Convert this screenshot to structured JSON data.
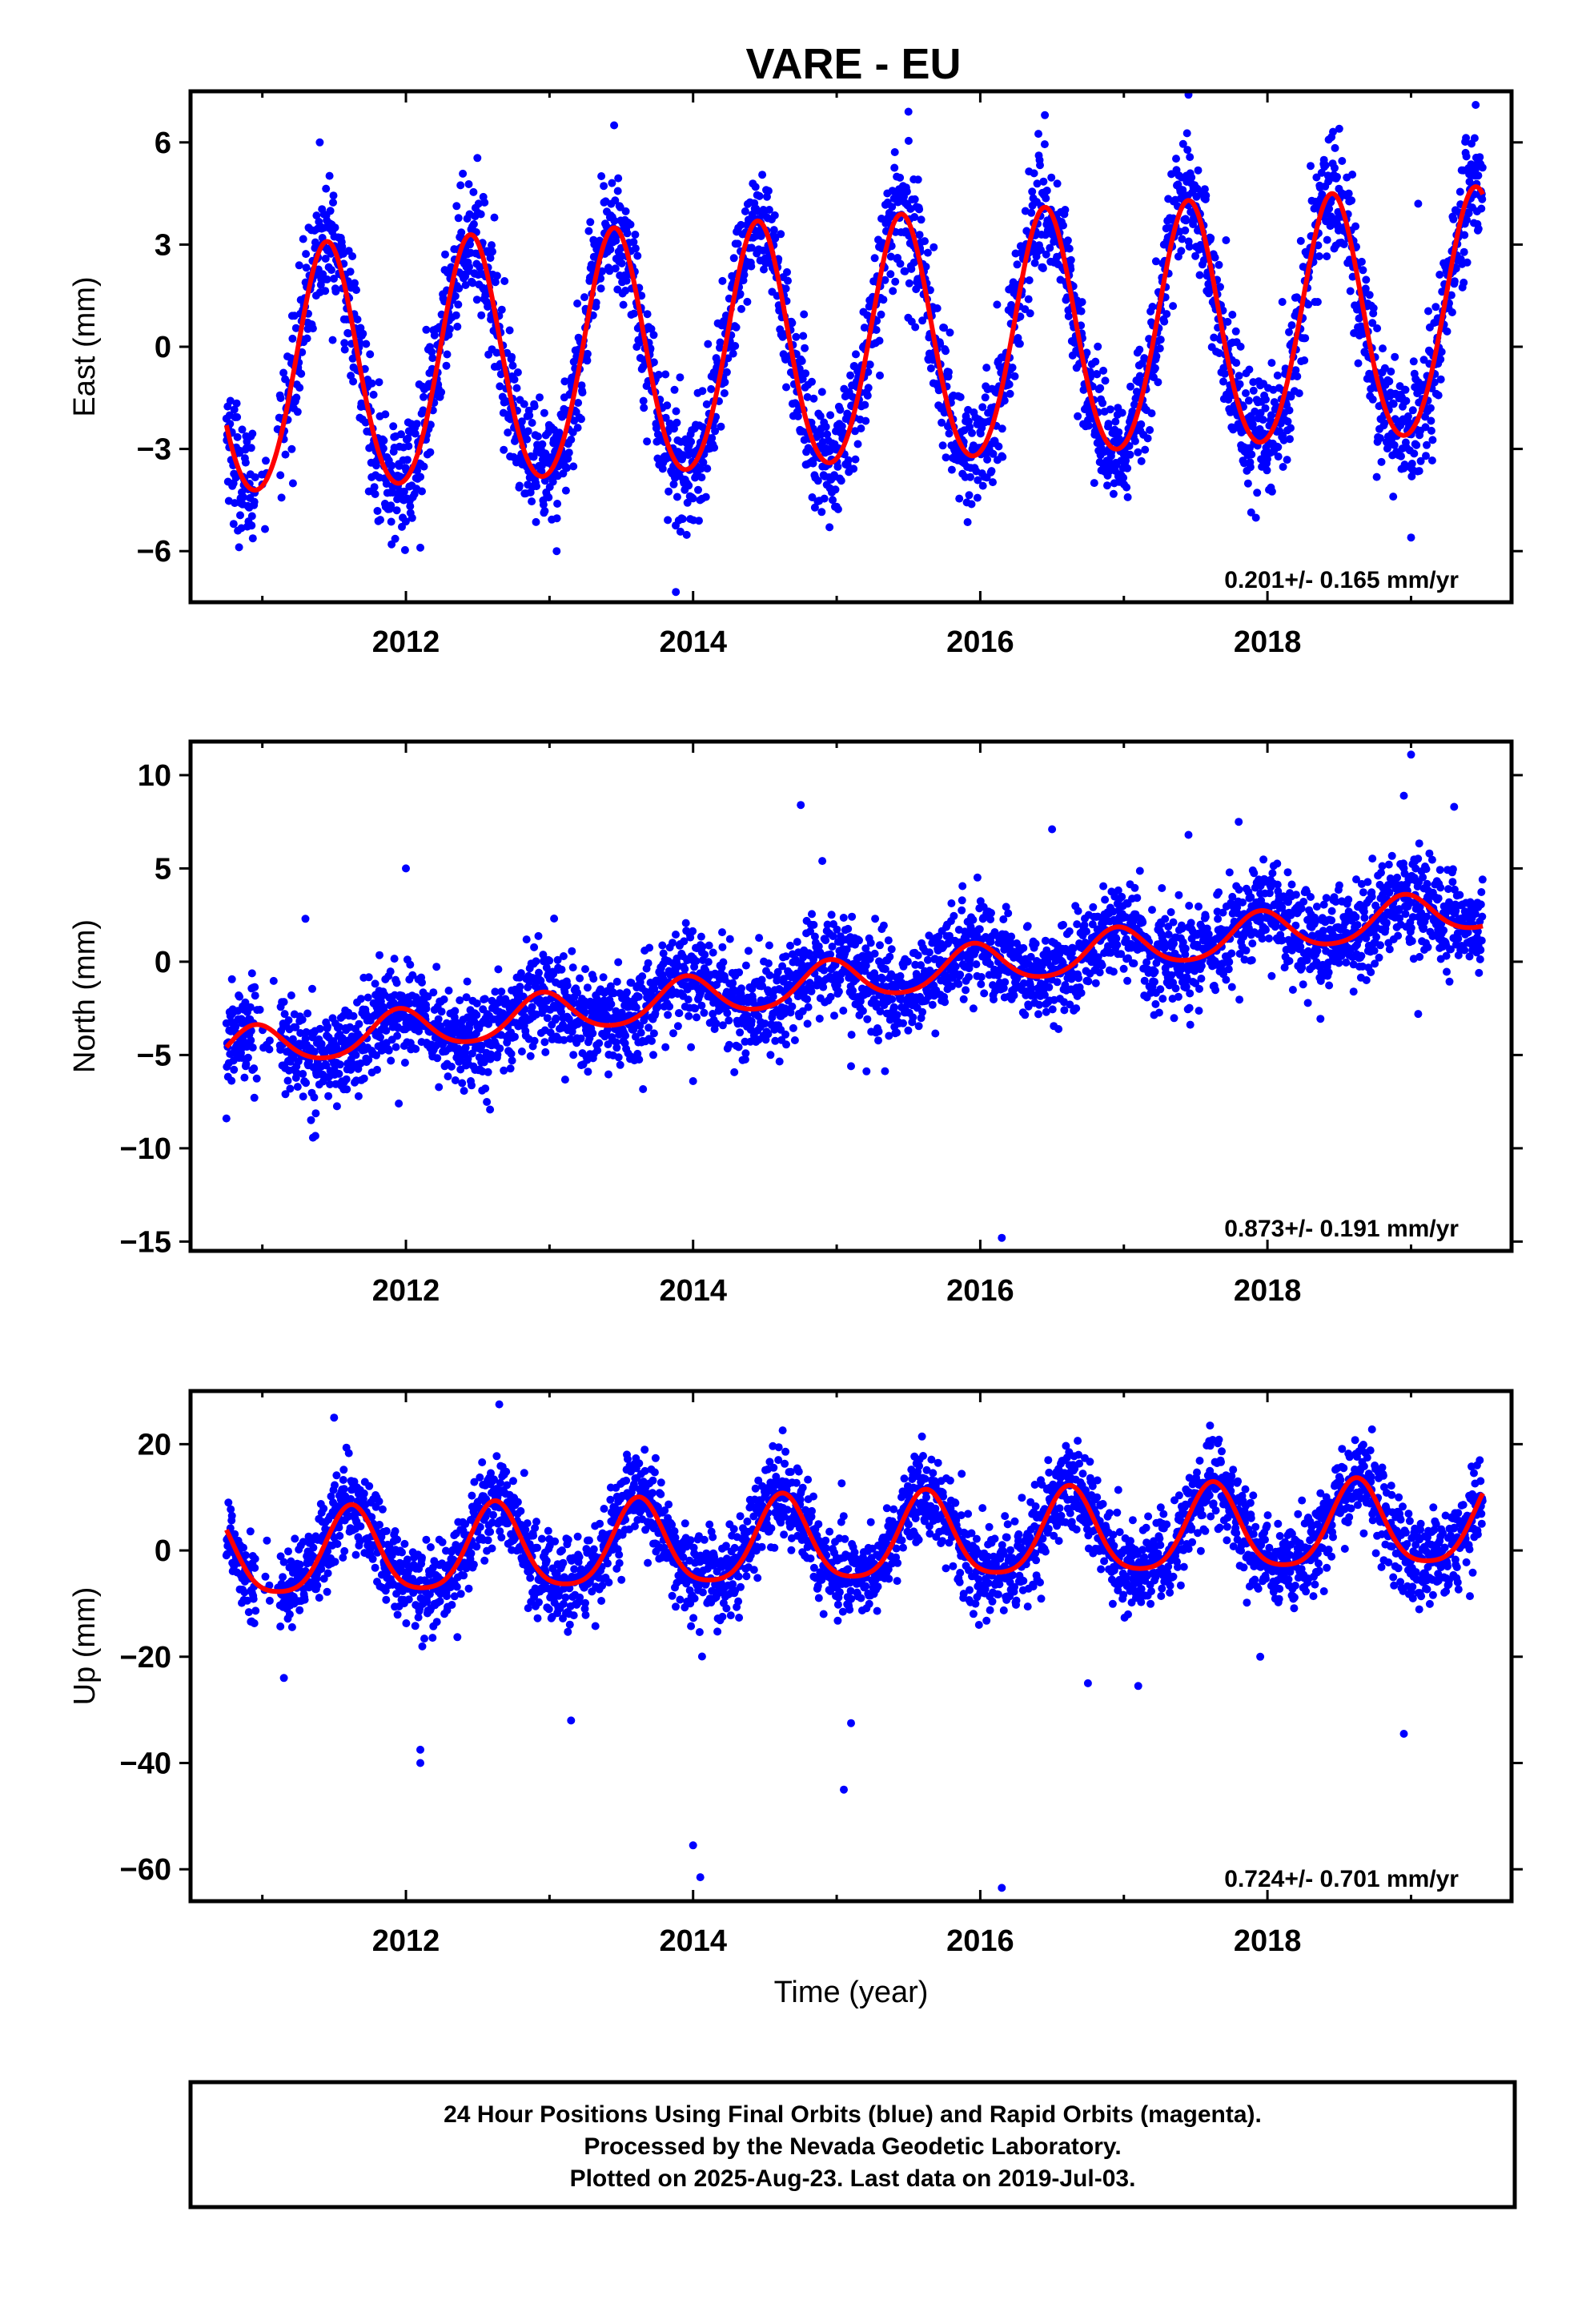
{
  "title": "VARE - EU",
  "chart_data": [
    {
      "type": "scatter",
      "name": "east",
      "ylabel": "East (mm)",
      "xlim": [
        2010.5,
        2019.7
      ],
      "ylim": [
        -7.5,
        7.5
      ],
      "yticks": [
        -6,
        -3,
        0,
        3,
        6
      ],
      "ytick_labels": [
        "−6",
        "−3",
        "0",
        "3",
        "6"
      ],
      "xticks": [
        2012,
        2014,
        2016,
        2018
      ],
      "xtick_labels": [
        "2012",
        "2014",
        "2016",
        "2018"
      ],
      "rate_label": "0.201+/- 0.165 mm/yr",
      "data_x_range": [
        2010.75,
        2019.5
      ],
      "point_color": "#0000ff",
      "fit_color": "#ff0000",
      "fit": {
        "offset": -0.95,
        "trend": 0.201,
        "annual_amp": 3.6,
        "annual_peak": 0.45,
        "semiannual_amp": 0.3
      },
      "outliers": [
        {
          "x": 2010.8,
          "y": -5.2
        },
        {
          "x": 2011.9,
          "y": -5.8
        },
        {
          "x": 2012.1,
          "y": -5.9
        },
        {
          "x": 2013.05,
          "y": -6.0
        },
        {
          "x": 2013.9,
          "y": -5.1
        },
        {
          "x": 2013.88,
          "y": -7.2
        },
        {
          "x": 2014.95,
          "y": -5.3
        },
        {
          "x": 2015.5,
          "y": 6.9
        },
        {
          "x": 2016.45,
          "y": 6.8
        },
        {
          "x": 2017.45,
          "y": 7.4
        },
        {
          "x": 2018.5,
          "y": 6.4
        },
        {
          "x": 2019.0,
          "y": -5.6
        },
        {
          "x": 2019.05,
          "y": 4.2
        },
        {
          "x": 2019.45,
          "y": 7.1
        },
        {
          "x": 2011.4,
          "y": 6.0
        },
        {
          "x": 2013.45,
          "y": 6.5
        }
      ]
    },
    {
      "type": "scatter",
      "name": "north",
      "ylabel": "North (mm)",
      "xlim": [
        2010.5,
        2019.7
      ],
      "ylim": [
        -15.5,
        11.8
      ],
      "yticks": [
        -15,
        -10,
        -5,
        0,
        5,
        10
      ],
      "ytick_labels": [
        "−15",
        "−10",
        "−5",
        "0",
        "5",
        "10"
      ],
      "xticks": [
        2012,
        2014,
        2016,
        2018
      ],
      "xtick_labels": [
        "2012",
        "2014",
        "2016",
        "2018"
      ],
      "rate_label": "0.873+/- 0.191 mm/yr",
      "data_x_range": [
        2010.75,
        2019.5
      ],
      "point_color": "#0000ff",
      "fit_color": "#ff0000",
      "fit": {
        "offset": -4.8,
        "trend": 0.873,
        "annual_amp": 1.1,
        "annual_peak": 0.95,
        "semiannual_amp": 0.15
      },
      "outliers": [
        {
          "x": 2010.75,
          "y": -8.4
        },
        {
          "x": 2011.3,
          "y": 2.3
        },
        {
          "x": 2012.0,
          "y": 5.0
        },
        {
          "x": 2011.95,
          "y": -7.6
        },
        {
          "x": 2014.0,
          "y": -6.4
        },
        {
          "x": 2014.75,
          "y": 8.4
        },
        {
          "x": 2014.9,
          "y": 5.4
        },
        {
          "x": 2015.1,
          "y": -5.6
        },
        {
          "x": 2016.15,
          "y": -14.8
        },
        {
          "x": 2016.5,
          "y": 7.1
        },
        {
          "x": 2017.45,
          "y": 6.8
        },
        {
          "x": 2017.8,
          "y": 7.5
        },
        {
          "x": 2018.95,
          "y": 8.9
        },
        {
          "x": 2019.0,
          "y": 11.1
        },
        {
          "x": 2019.05,
          "y": -2.8
        },
        {
          "x": 2019.3,
          "y": 8.3
        },
        {
          "x": 2018.6,
          "y": -1.6
        }
      ]
    },
    {
      "type": "scatter",
      "name": "up",
      "ylabel": "Up (mm)",
      "xlabel": "Time (year)",
      "xlim": [
        2010.5,
        2019.7
      ],
      "ylim": [
        -66,
        30
      ],
      "yticks": [
        -60,
        -40,
        -20,
        0,
        20
      ],
      "ytick_labels": [
        "−60",
        "−40",
        "−20",
        "0",
        "20"
      ],
      "xticks": [
        2012,
        2014,
        2016,
        2018
      ],
      "xtick_labels": [
        "2012",
        "2014",
        "2016",
        "2018"
      ],
      "rate_label": "0.724+/- 0.701 mm/yr",
      "data_x_range": [
        2010.75,
        2019.5
      ],
      "point_color": "#0000ff",
      "fit_color": "#ff0000",
      "fit": {
        "offset": -1.5,
        "trend": 0.724,
        "annual_amp": 8.0,
        "annual_peak": 0.62,
        "semiannual_amp": 1.5
      },
      "outliers": [
        {
          "x": 2011.5,
          "y": 25.0
        },
        {
          "x": 2011.15,
          "y": -24.0
        },
        {
          "x": 2012.1,
          "y": -37.5
        },
        {
          "x": 2012.1,
          "y": -40.0
        },
        {
          "x": 2012.65,
          "y": 27.5
        },
        {
          "x": 2013.15,
          "y": -32.0
        },
        {
          "x": 2014.0,
          "y": -55.5
        },
        {
          "x": 2014.05,
          "y": -61.5
        },
        {
          "x": 2015.1,
          "y": -32.5
        },
        {
          "x": 2015.05,
          "y": -45.0
        },
        {
          "x": 2016.15,
          "y": -63.5
        },
        {
          "x": 2016.75,
          "y": -25.0
        },
        {
          "x": 2017.1,
          "y": -25.5
        },
        {
          "x": 2017.95,
          "y": -20.0
        },
        {
          "x": 2018.95,
          "y": -34.5
        },
        {
          "x": 2017.6,
          "y": 23.5
        }
      ]
    }
  ],
  "footer": {
    "line1": "24 Hour Positions Using Final Orbits (blue) and Rapid Orbits (magenta).",
    "line2": "Processed by the Nevada Geodetic Laboratory.",
    "line3": "Plotted on 2025-Aug-23. Last data on 2019-Jul-03."
  }
}
